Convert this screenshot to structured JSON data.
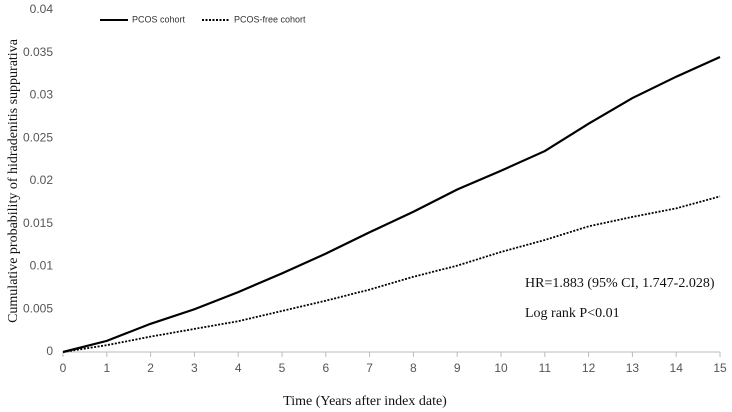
{
  "chart_data": {
    "type": "line",
    "x_label": "Time (Years after index date)",
    "y_label": "Cumulative probability of hidradenitis suppurativa",
    "x": [
      0,
      1,
      2,
      3,
      4,
      5,
      6,
      7,
      8,
      9,
      10,
      11,
      12,
      13,
      14,
      15
    ],
    "series": [
      {
        "name": "PCOS cohort",
        "color": "#000000",
        "style": "solid",
        "values": [
          0,
          0.0013,
          0.0033,
          0.005,
          0.007,
          0.0092,
          0.0115,
          0.014,
          0.0164,
          0.019,
          0.0212,
          0.0235,
          0.0267,
          0.0297,
          0.0322,
          0.0345
        ]
      },
      {
        "name": "PCOS-free cohort",
        "color": "#000000",
        "style": "dotted",
        "values": [
          0,
          0.0008,
          0.0018,
          0.0027,
          0.0036,
          0.0048,
          0.006,
          0.0073,
          0.0088,
          0.0101,
          0.0117,
          0.0131,
          0.0147,
          0.0158,
          0.0168,
          0.0182
        ]
      }
    ],
    "annotations": [
      "HR=1.883 (95% CI, 1.747-2.028)",
      "Log rank P<0.01"
    ],
    "xlim": [
      0,
      15
    ],
    "xticks": [
      0,
      1,
      2,
      3,
      4,
      5,
      6,
      7,
      8,
      9,
      10,
      11,
      12,
      13,
      14,
      15
    ],
    "ylim": [
      0,
      0.04
    ],
    "yticks": [
      0,
      0.005,
      0.01,
      0.015,
      0.02,
      0.025,
      0.03,
      0.035,
      0.04
    ],
    "grid": false,
    "legend": "top-left"
  }
}
